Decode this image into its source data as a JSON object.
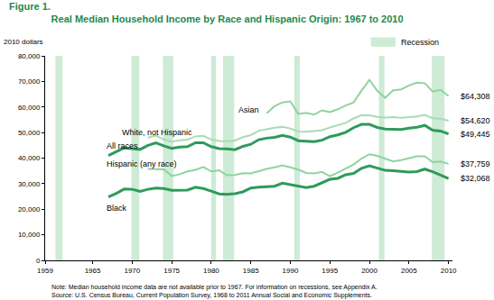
{
  "chart_data": {
    "type": "line",
    "title": "Figure 1.",
    "subtitle": "Real Median Household Income by Race and Hispanic Origin: 1967 to 2010",
    "y_label": "2010 dollars",
    "x": [
      1967,
      1968,
      1969,
      1970,
      1971,
      1972,
      1973,
      1974,
      1975,
      1976,
      1977,
      1978,
      1979,
      1980,
      1981,
      1982,
      1983,
      1984,
      1985,
      1986,
      1987,
      1988,
      1989,
      1990,
      1991,
      1992,
      1993,
      1994,
      1995,
      1996,
      1997,
      1998,
      1999,
      2000,
      2001,
      2002,
      2003,
      2004,
      2005,
      2006,
      2007,
      2008,
      2009,
      2010
    ],
    "series": [
      {
        "name": "Asian",
        "color": "#8fd3a0",
        "values": [
          null,
          null,
          null,
          null,
          null,
          null,
          null,
          null,
          null,
          null,
          null,
          null,
          null,
          null,
          null,
          null,
          null,
          null,
          null,
          null,
          57500,
          60300,
          61800,
          62200,
          57300,
          57700,
          57000,
          58700,
          58000,
          59100,
          60600,
          61800,
          66400,
          70600,
          66300,
          63600,
          66500,
          66900,
          68400,
          69500,
          69300,
          66000,
          66700,
          64308
        ],
        "value_labels": [
          null,
          null,
          null,
          null,
          null,
          null,
          null,
          null,
          null,
          null,
          null,
          null,
          null,
          null,
          null,
          null,
          null,
          null,
          null,
          null,
          null,
          null,
          null,
          null,
          null,
          null,
          null,
          null,
          null,
          null,
          null,
          null,
          null,
          null,
          null,
          null,
          null,
          null,
          null,
          null,
          null,
          null,
          null,
          "$64,308"
        ]
      },
      {
        "name": "White, not Hispanic",
        "color": "#a8dcb3",
        "values": [
          null,
          null,
          null,
          null,
          null,
          48000,
          48800,
          47300,
          46400,
          47000,
          47200,
          48500,
          48700,
          47300,
          46700,
          46600,
          46900,
          48200,
          49000,
          50700,
          51400,
          51900,
          52200,
          51600,
          50400,
          50300,
          50600,
          50900,
          52000,
          52800,
          53800,
          55500,
          56800,
          56700,
          56100,
          55900,
          56000,
          55800,
          56100,
          56300,
          56900,
          55600,
          55400,
          54620
        ],
        "value_labels": [
          null,
          null,
          null,
          null,
          null,
          null,
          null,
          null,
          null,
          null,
          null,
          null,
          null,
          null,
          null,
          null,
          null,
          null,
          null,
          null,
          null,
          null,
          null,
          null,
          null,
          null,
          null,
          null,
          null,
          null,
          null,
          null,
          null,
          null,
          null,
          null,
          null,
          null,
          null,
          null,
          null,
          null,
          null,
          "$54,620"
        ]
      },
      {
        "name": "All races",
        "color": "#2e9a5a",
        "values": [
          41000,
          42500,
          44000,
          43700,
          43400,
          45000,
          46000,
          44800,
          43800,
          44300,
          44500,
          46000,
          46000,
          44500,
          43700,
          43600,
          43300,
          44600,
          45400,
          47200,
          47800,
          48100,
          48900,
          48200,
          46800,
          46600,
          46400,
          47000,
          48400,
          49100,
          50100,
          51900,
          53200,
          53200,
          52000,
          51400,
          51400,
          51200,
          51700,
          52100,
          52800,
          50900,
          50600,
          49445
        ],
        "value_labels": [
          null,
          null,
          null,
          null,
          null,
          null,
          null,
          null,
          null,
          null,
          null,
          null,
          null,
          null,
          null,
          null,
          null,
          null,
          null,
          null,
          null,
          null,
          null,
          null,
          null,
          null,
          null,
          null,
          null,
          null,
          null,
          null,
          null,
          null,
          null,
          null,
          null,
          null,
          null,
          null,
          null,
          null,
          null,
          "$49,445"
        ]
      },
      {
        "name": "Hispanic (any race)",
        "color": "#8fd3a0",
        "values": [
          null,
          null,
          null,
          null,
          null,
          35800,
          35600,
          35600,
          33000,
          33700,
          34800,
          35400,
          36500,
          34800,
          35200,
          33300,
          33400,
          34100,
          34000,
          34900,
          35800,
          36400,
          37200,
          36400,
          35500,
          34200,
          34000,
          34600,
          32900,
          34300,
          35800,
          37500,
          39800,
          41500,
          40900,
          39700,
          38700,
          39200,
          39900,
          40700,
          40700,
          38400,
          38700,
          37759
        ],
        "value_labels": [
          null,
          null,
          null,
          null,
          null,
          null,
          null,
          null,
          null,
          null,
          null,
          null,
          null,
          null,
          null,
          null,
          null,
          null,
          null,
          null,
          null,
          null,
          null,
          null,
          null,
          null,
          null,
          null,
          null,
          null,
          null,
          null,
          null,
          null,
          null,
          null,
          null,
          null,
          null,
          null,
          null,
          null,
          null,
          "$37,759"
        ]
      },
      {
        "name": "Black",
        "color": "#2e9a5a",
        "values": [
          24800,
          26200,
          27900,
          27800,
          27000,
          27800,
          28300,
          28100,
          27400,
          27500,
          27500,
          28600,
          28100,
          27100,
          26000,
          25800,
          26100,
          26800,
          28300,
          28600,
          28700,
          29000,
          30200,
          29700,
          29000,
          28500,
          29000,
          30400,
          31700,
          32100,
          33500,
          34000,
          36000,
          37000,
          36000,
          35200,
          35100,
          34700,
          34500,
          34700,
          35700,
          34700,
          33500,
          32068
        ],
        "value_labels": [
          null,
          null,
          null,
          null,
          null,
          null,
          null,
          null,
          null,
          null,
          null,
          null,
          null,
          null,
          null,
          null,
          null,
          null,
          null,
          null,
          null,
          null,
          null,
          null,
          null,
          null,
          null,
          null,
          null,
          null,
          null,
          null,
          null,
          null,
          null,
          null,
          null,
          null,
          null,
          null,
          null,
          null,
          null,
          "$32,068"
        ]
      }
    ],
    "xlim": [
      1959,
      2010.5
    ],
    "xticks": [
      1959,
      1965,
      1970,
      1975,
      1980,
      1985,
      1990,
      1995,
      2000,
      2005,
      2010
    ],
    "ylim": [
      0,
      80000
    ],
    "yticks": [
      {
        "value": 0,
        "label": "0"
      },
      {
        "value": 10000,
        "label": "10,000"
      },
      {
        "value": 20000,
        "label": "20,000"
      },
      {
        "value": 30000,
        "label": "30,000"
      },
      {
        "value": 40000,
        "label": "40,000"
      },
      {
        "value": 50000,
        "label": "50,000"
      },
      {
        "value": 60000,
        "label": "60,000"
      },
      {
        "value": 70000,
        "label": "70,000"
      },
      {
        "value": 80000,
        "label": "80,000"
      }
    ],
    "grid": false,
    "recession_label": "Recession",
    "recessions": [
      [
        1960.3,
        1961.2
      ],
      [
        1969.9,
        1970.9
      ],
      [
        1973.9,
        1975.2
      ],
      [
        1980.0,
        1980.6
      ],
      [
        1981.5,
        1982.9
      ],
      [
        1990.5,
        1991.2
      ],
      [
        2001.2,
        2001.9
      ],
      [
        2007.9,
        2009.5
      ]
    ],
    "notes": [
      "Note: Median household income data are not available prior to 1967. For information on recessions, see Appendix A.",
      "Source: U.S. Census Bureau, Current Population Survey, 1968 to 2011 Annual Social and Economic Supplements."
    ]
  }
}
